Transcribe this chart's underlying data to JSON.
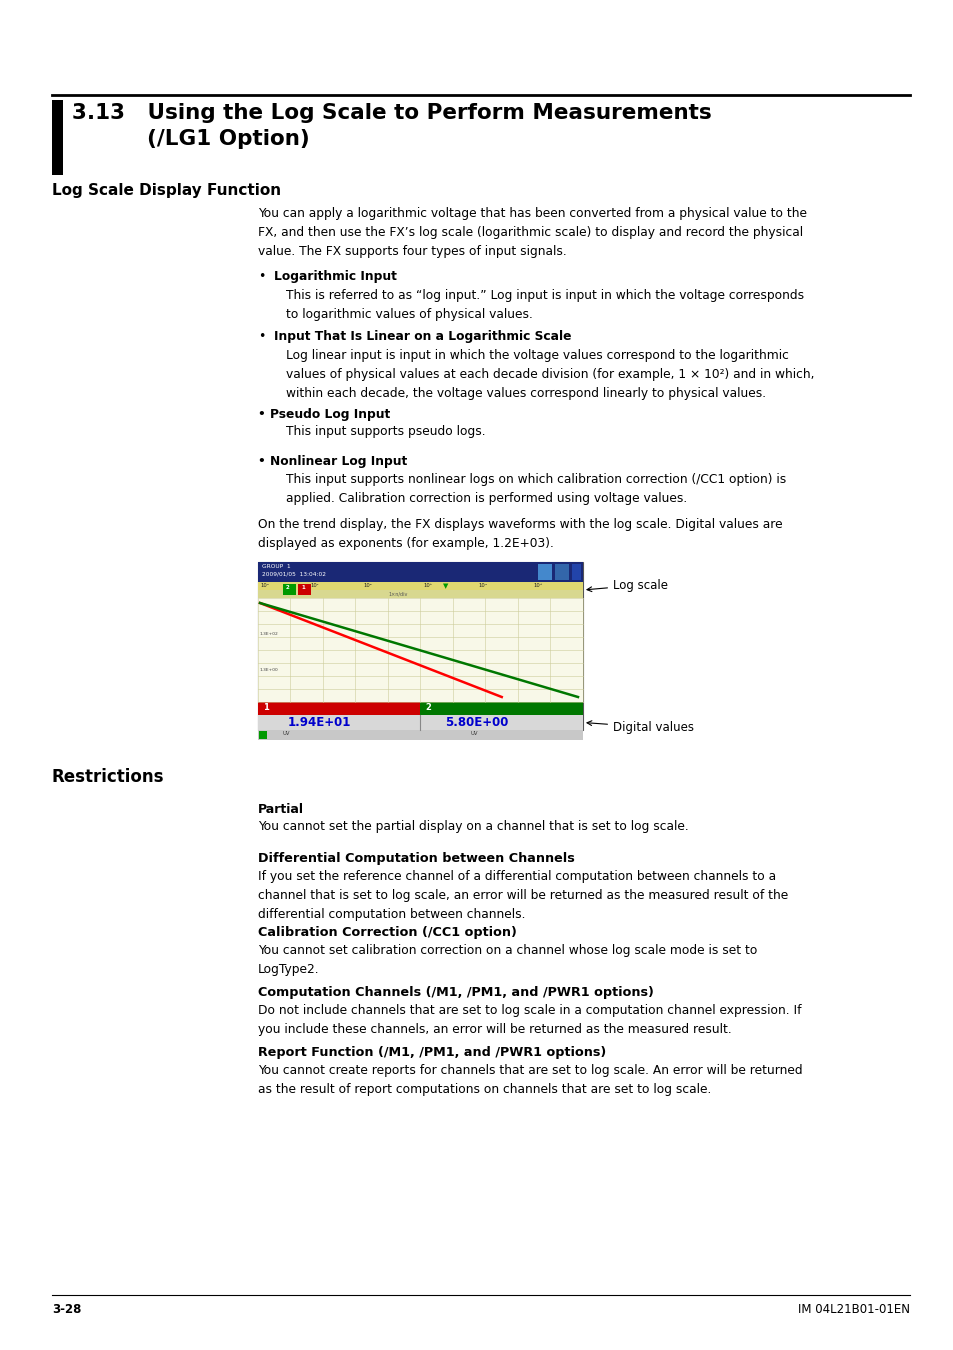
{
  "page_bg": "#ffffff",
  "footer_left": "3-28",
  "footer_right": "IM 04L21B01-01EN",
  "restriction_items": [
    {
      "title": "Partial",
      "text": "You cannot set the partial display on a channel that is set to log scale."
    },
    {
      "title": "Differential Computation between Channels",
      "text": "If you set the reference channel of a differential computation between channels to a\nchannel that is set to log scale, an error will be returned as the measured result of the\ndifferential computation between channels."
    },
    {
      "title": "Calibration Correction (/CC1 option)",
      "text": "You cannot set calibration correction on a channel whose log scale mode is set to\nLogType2."
    },
    {
      "title": "Computation Channels (/M1, /PM1, and /PWR1 options)",
      "text": "Do not include channels that are set to log scale in a computation channel expression. If\nyou include these channels, an error will be returned as the measured result."
    },
    {
      "title": "Report Function (/M1, /PM1, and /PWR1 options)",
      "text": "You cannot create reports for channels that are set to log scale. An error will be returned\nas the result of report computations on channels that are set to log scale."
    }
  ]
}
